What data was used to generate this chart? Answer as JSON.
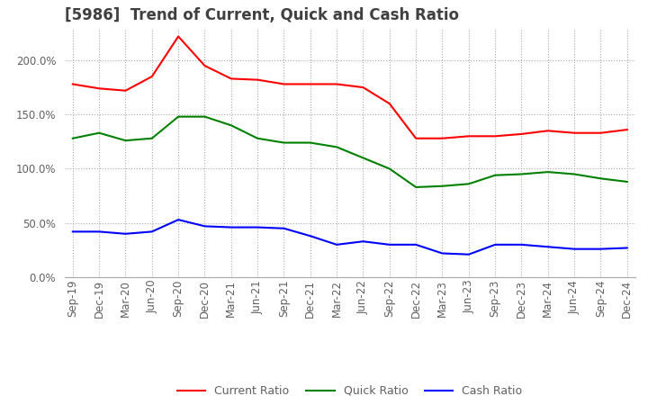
{
  "title": "[5986]  Trend of Current, Quick and Cash Ratio",
  "x_labels": [
    "Sep-19",
    "Dec-19",
    "Mar-20",
    "Jun-20",
    "Sep-20",
    "Dec-20",
    "Mar-21",
    "Jun-21",
    "Sep-21",
    "Dec-21",
    "Mar-22",
    "Jun-22",
    "Sep-22",
    "Dec-22",
    "Mar-23",
    "Jun-23",
    "Sep-23",
    "Dec-23",
    "Mar-24",
    "Jun-24",
    "Sep-24",
    "Dec-24"
  ],
  "current_ratio": [
    178,
    174,
    172,
    185,
    222,
    195,
    183,
    182,
    178,
    178,
    178,
    175,
    160,
    128,
    128,
    130,
    130,
    132,
    135,
    133,
    133,
    136
  ],
  "quick_ratio": [
    128,
    133,
    126,
    128,
    148,
    148,
    140,
    128,
    124,
    124,
    120,
    110,
    100,
    83,
    84,
    86,
    94,
    95,
    97,
    95,
    91,
    88
  ],
  "cash_ratio": [
    42,
    42,
    40,
    42,
    53,
    47,
    46,
    46,
    45,
    38,
    30,
    33,
    30,
    30,
    22,
    21,
    30,
    30,
    28,
    26,
    26,
    27
  ],
  "ylim": [
    0,
    230
  ],
  "yticks": [
    0,
    50,
    100,
    150,
    200
  ],
  "current_color": "#ff0000",
  "quick_color": "#008000",
  "cash_color": "#0000ff",
  "background_color": "#ffffff",
  "grid_color": "#aaaaaa",
  "title_color": "#404040",
  "label_color": "#606060",
  "title_fontsize": 12,
  "tick_fontsize": 8.5
}
